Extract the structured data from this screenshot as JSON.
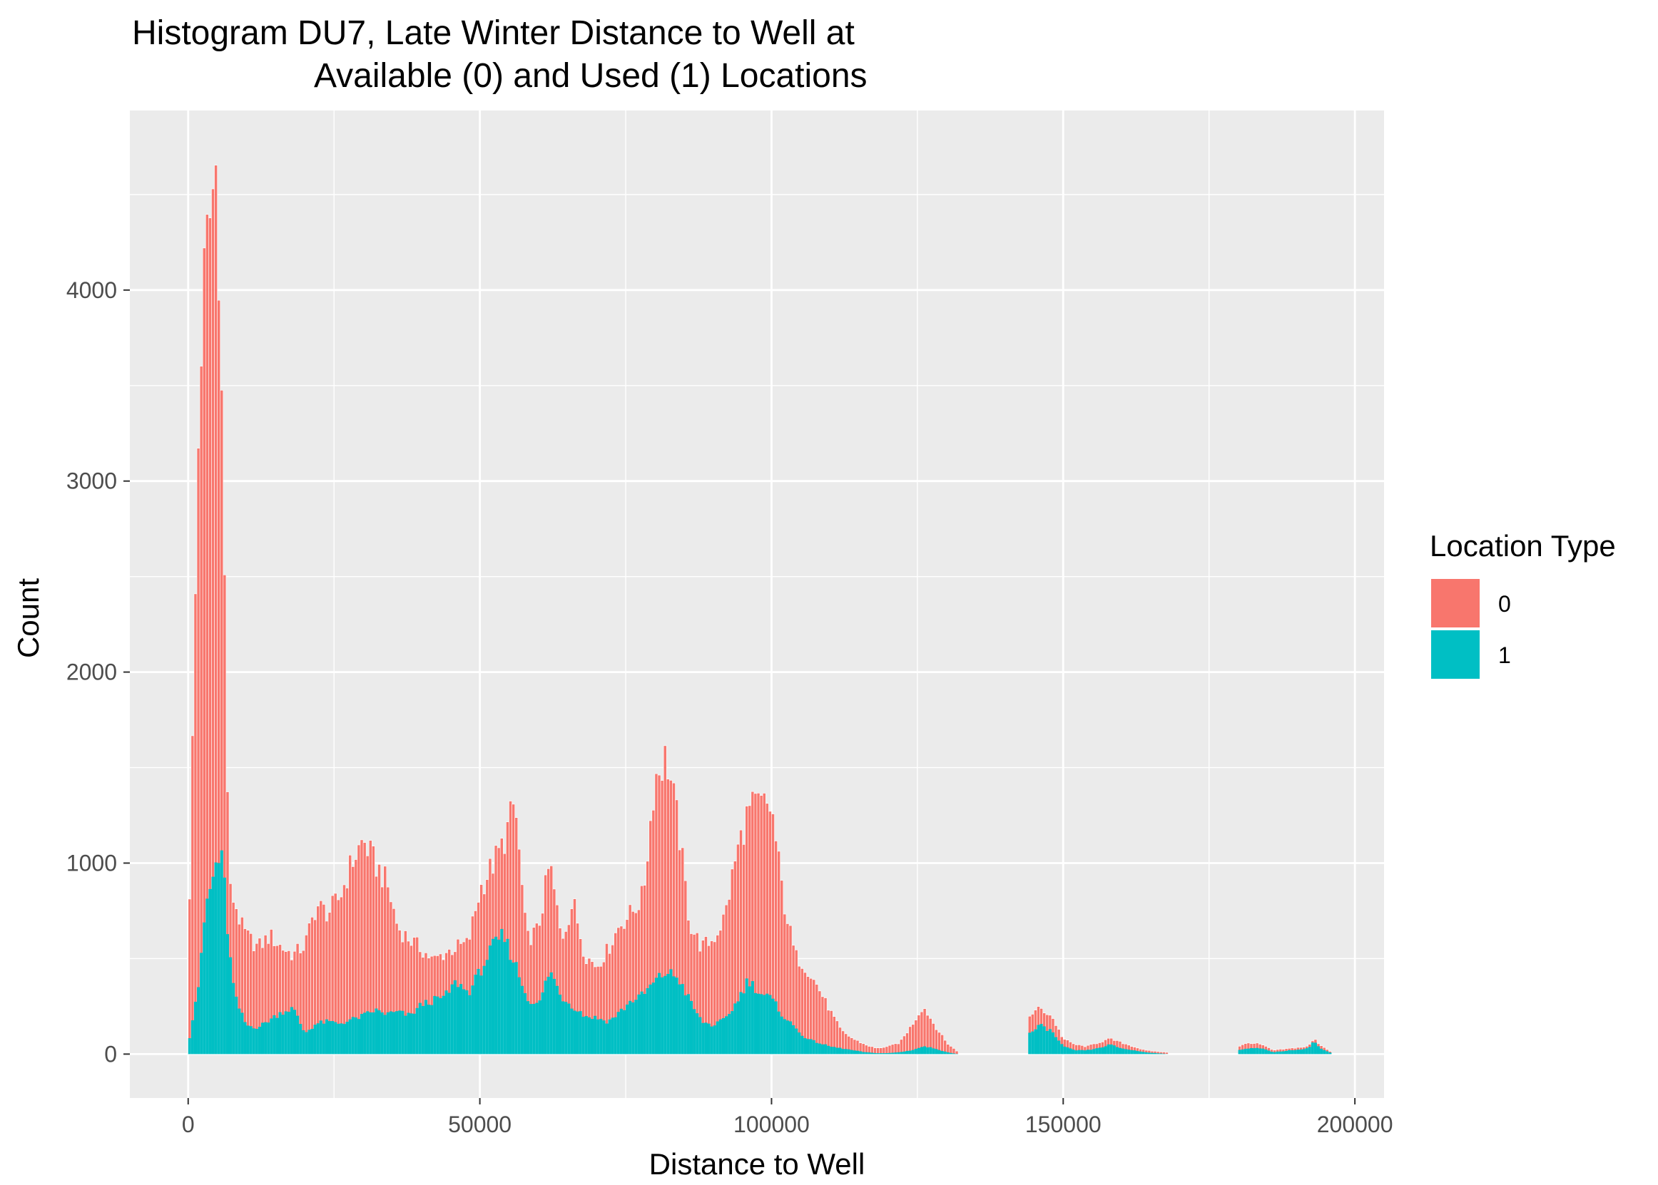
{
  "chart_data": {
    "type": "bar",
    "title_lines": [
      "Histogram DU7, Late Winter Distance to Well at",
      "Available (0) and Used (1) Locations"
    ],
    "xlabel": "Distance to Well",
    "ylabel": "Count",
    "xlim": [
      -10000,
      205000
    ],
    "ylim": [
      -230,
      4940
    ],
    "x_ticks": [
      0,
      50000,
      100000,
      150000,
      200000
    ],
    "x_tick_labels": [
      "0",
      "50000",
      "100000",
      "150000",
      "200000"
    ],
    "y_ticks": [
      0,
      1000,
      2000,
      3000,
      4000
    ],
    "y_tick_labels": [
      "0",
      "1000",
      "2000",
      "3000",
      "4000"
    ],
    "grid": true,
    "legend": {
      "title": "Location Type",
      "position": "right",
      "entries": [
        {
          "label": "0",
          "color": "#F8766D"
        },
        {
          "label": "1",
          "color": "#00BFC4"
        }
      ]
    },
    "colors": {
      "panel": "#EBEBEB",
      "grid": "#FFFFFF",
      "series_0": "#F8766D",
      "series_1": "#00BFC4"
    },
    "series": [
      {
        "name": "0",
        "points": [
          [
            0,
            480
          ],
          [
            1000,
            1980
          ],
          [
            2000,
            3600
          ],
          [
            3000,
            4150
          ],
          [
            4000,
            4450
          ],
          [
            5000,
            4700
          ],
          [
            6000,
            3000
          ],
          [
            7000,
            860
          ],
          [
            8000,
            800
          ],
          [
            9000,
            680
          ],
          [
            10000,
            620
          ],
          [
            12000,
            560
          ],
          [
            14000,
            620
          ],
          [
            16000,
            560
          ],
          [
            18000,
            520
          ],
          [
            20000,
            570
          ],
          [
            22000,
            780
          ],
          [
            24000,
            740
          ],
          [
            26000,
            820
          ],
          [
            28000,
            1000
          ],
          [
            30000,
            1120
          ],
          [
            32000,
            1000
          ],
          [
            34000,
            900
          ],
          [
            36000,
            660
          ],
          [
            38000,
            600
          ],
          [
            40000,
            550
          ],
          [
            42000,
            490
          ],
          [
            44000,
            530
          ],
          [
            46000,
            560
          ],
          [
            48000,
            580
          ],
          [
            50000,
            860
          ],
          [
            52000,
            980
          ],
          [
            54000,
            1100
          ],
          [
            56000,
            1320
          ],
          [
            58000,
            600
          ],
          [
            60000,
            650
          ],
          [
            62000,
            1000
          ],
          [
            64000,
            600
          ],
          [
            66000,
            800
          ],
          [
            68000,
            520
          ],
          [
            70000,
            460
          ],
          [
            72000,
            550
          ],
          [
            74000,
            680
          ],
          [
            76000,
            740
          ],
          [
            78000,
            830
          ],
          [
            80000,
            1450
          ],
          [
            82000,
            1560
          ],
          [
            84000,
            1200
          ],
          [
            86000,
            680
          ],
          [
            88000,
            560
          ],
          [
            90000,
            600
          ],
          [
            92000,
            720
          ],
          [
            94000,
            1050
          ],
          [
            96000,
            1270
          ],
          [
            98000,
            1310
          ],
          [
            100000,
            1290
          ],
          [
            102000,
            820
          ],
          [
            104000,
            520
          ],
          [
            106000,
            450
          ],
          [
            108000,
            350
          ],
          [
            110000,
            230
          ],
          [
            112000,
            120
          ],
          [
            114000,
            80
          ],
          [
            116000,
            50
          ],
          [
            118000,
            30
          ],
          [
            120000,
            40
          ],
          [
            122000,
            60
          ],
          [
            124000,
            150
          ],
          [
            126000,
            250
          ],
          [
            128000,
            150
          ],
          [
            130000,
            60
          ],
          [
            132000,
            10
          ],
          [
            144000,
            200
          ],
          [
            146000,
            240
          ],
          [
            148000,
            200
          ],
          [
            150000,
            80
          ],
          [
            152000,
            50
          ],
          [
            154000,
            40
          ],
          [
            156000,
            60
          ],
          [
            158000,
            80
          ],
          [
            160000,
            60
          ],
          [
            162000,
            40
          ],
          [
            164000,
            20
          ],
          [
            168000,
            8
          ],
          [
            180000,
            40
          ],
          [
            182000,
            60
          ],
          [
            184000,
            50
          ],
          [
            186000,
            20
          ],
          [
            192000,
            40
          ],
          [
            193000,
            80
          ],
          [
            194000,
            50
          ],
          [
            196000,
            10
          ]
        ]
      },
      {
        "name": "1",
        "points": [
          [
            0,
            40
          ],
          [
            1000,
            240
          ],
          [
            2000,
            400
          ],
          [
            3000,
            780
          ],
          [
            4000,
            880
          ],
          [
            5000,
            1030
          ],
          [
            6000,
            990
          ],
          [
            7000,
            550
          ],
          [
            8000,
            300
          ],
          [
            9000,
            220
          ],
          [
            10000,
            150
          ],
          [
            12000,
            140
          ],
          [
            14000,
            180
          ],
          [
            16000,
            220
          ],
          [
            18000,
            240
          ],
          [
            20000,
            110
          ],
          [
            22000,
            160
          ],
          [
            24000,
            170
          ],
          [
            26000,
            160
          ],
          [
            28000,
            180
          ],
          [
            30000,
            200
          ],
          [
            32000,
            230
          ],
          [
            34000,
            210
          ],
          [
            36000,
            220
          ],
          [
            38000,
            200
          ],
          [
            40000,
            260
          ],
          [
            42000,
            280
          ],
          [
            44000,
            300
          ],
          [
            46000,
            380
          ],
          [
            48000,
            320
          ],
          [
            50000,
            430
          ],
          [
            52000,
            550
          ],
          [
            54000,
            620
          ],
          [
            56000,
            480
          ],
          [
            58000,
            300
          ],
          [
            60000,
            250
          ],
          [
            62000,
            440
          ],
          [
            64000,
            300
          ],
          [
            66000,
            250
          ],
          [
            68000,
            200
          ],
          [
            70000,
            190
          ],
          [
            72000,
            170
          ],
          [
            74000,
            220
          ],
          [
            76000,
            280
          ],
          [
            78000,
            310
          ],
          [
            80000,
            380
          ],
          [
            82000,
            430
          ],
          [
            84000,
            400
          ],
          [
            86000,
            280
          ],
          [
            88000,
            170
          ],
          [
            90000,
            150
          ],
          [
            92000,
            180
          ],
          [
            94000,
            270
          ],
          [
            96000,
            390
          ],
          [
            98000,
            320
          ],
          [
            100000,
            290
          ],
          [
            102000,
            200
          ],
          [
            104000,
            140
          ],
          [
            106000,
            80
          ],
          [
            108000,
            60
          ],
          [
            110000,
            40
          ],
          [
            112000,
            30
          ],
          [
            114000,
            20
          ],
          [
            116000,
            10
          ],
          [
            118000,
            5
          ],
          [
            120000,
            5
          ],
          [
            122000,
            10
          ],
          [
            124000,
            20
          ],
          [
            126000,
            40
          ],
          [
            128000,
            30
          ],
          [
            130000,
            10
          ],
          [
            132000,
            0
          ],
          [
            144000,
            100
          ],
          [
            146000,
            150
          ],
          [
            148000,
            120
          ],
          [
            150000,
            40
          ],
          [
            152000,
            20
          ],
          [
            154000,
            20
          ],
          [
            156000,
            30
          ],
          [
            158000,
            50
          ],
          [
            160000,
            30
          ],
          [
            162000,
            20
          ],
          [
            164000,
            10
          ],
          [
            168000,
            0
          ],
          [
            180000,
            20
          ],
          [
            182000,
            30
          ],
          [
            184000,
            30
          ],
          [
            186000,
            10
          ],
          [
            192000,
            30
          ],
          [
            193000,
            70
          ],
          [
            194000,
            30
          ],
          [
            196000,
            5
          ]
        ]
      }
    ]
  }
}
